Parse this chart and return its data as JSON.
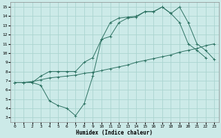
{
  "xlabel": "Humidex (Indice chaleur)",
  "bg_color": "#cceae8",
  "line_color": "#2a7060",
  "grid_color": "#aad4d0",
  "xlim": [
    -0.5,
    23.5
  ],
  "ylim": [
    2.5,
    15.5
  ],
  "xticks": [
    0,
    1,
    2,
    3,
    4,
    5,
    6,
    7,
    8,
    9,
    10,
    11,
    12,
    13,
    14,
    15,
    16,
    17,
    18,
    19,
    20,
    21,
    22,
    23
  ],
  "yticks": [
    3,
    4,
    5,
    6,
    7,
    8,
    9,
    10,
    11,
    12,
    13,
    14,
    15
  ],
  "line1_x": [
    0,
    1,
    2,
    3,
    4,
    5,
    6,
    7,
    8,
    9,
    10,
    11,
    12,
    13,
    14,
    15,
    16,
    17,
    18,
    19,
    20,
    21,
    22,
    23
  ],
  "line1_y": [
    6.8,
    6.8,
    6.9,
    7.1,
    7.3,
    7.4,
    7.5,
    7.6,
    7.8,
    7.9,
    8.1,
    8.3,
    8.5,
    8.7,
    9.0,
    9.2,
    9.4,
    9.6,
    9.8,
    10.1,
    10.3,
    10.5,
    10.8,
    11.0
  ],
  "line2_x": [
    0,
    1,
    2,
    3,
    4,
    5,
    6,
    7,
    8,
    9,
    10,
    11,
    12,
    13,
    14,
    15,
    16,
    17,
    18,
    19,
    20,
    21,
    22
  ],
  "line2_y": [
    6.8,
    6.8,
    6.8,
    6.5,
    4.8,
    4.3,
    4.0,
    3.2,
    4.5,
    7.5,
    11.5,
    13.3,
    13.8,
    13.9,
    14.0,
    14.5,
    14.5,
    15.0,
    14.3,
    13.3,
    11.0,
    10.3,
    9.5
  ],
  "line3_x": [
    0,
    1,
    2,
    3,
    4,
    5,
    6,
    7,
    8,
    9,
    10,
    11,
    12,
    13,
    14,
    15,
    16,
    17,
    18,
    19,
    20,
    21,
    22,
    23
  ],
  "line3_y": [
    6.8,
    6.8,
    6.8,
    7.5,
    8.0,
    8.0,
    8.0,
    8.0,
    9.0,
    9.5,
    11.5,
    11.8,
    13.3,
    13.8,
    13.9,
    14.5,
    14.5,
    15.0,
    14.3,
    15.0,
    13.3,
    11.0,
    10.3,
    9.3
  ]
}
